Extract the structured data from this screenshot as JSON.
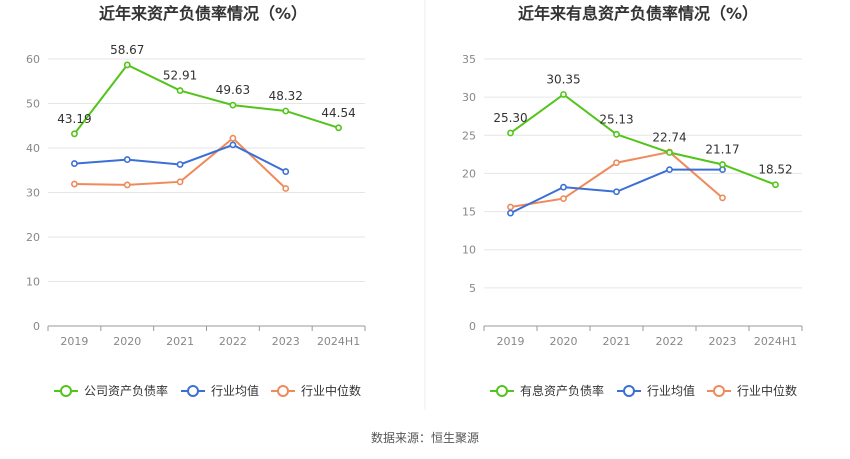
{
  "source_text": "数据来源：恒生聚源",
  "chart_data": [
    {
      "type": "line",
      "title": "近年来资产负债率情况（%）",
      "categories": [
        "2019",
        "2020",
        "2021",
        "2022",
        "2023",
        "2024H1"
      ],
      "ylim": [
        0,
        60
      ],
      "yticks": [
        0,
        10,
        20,
        30,
        40,
        50,
        60
      ],
      "grid": true,
      "legend_position": "bottom",
      "series": [
        {
          "name": "公司资产负债率",
          "color": "#52c41a",
          "labels": true,
          "values": [
            43.19,
            58.67,
            52.91,
            49.63,
            48.32,
            44.54
          ]
        },
        {
          "name": "行业均值",
          "color": "#3b6fd6",
          "labels": false,
          "values": [
            36.5,
            37.4,
            36.3,
            40.7,
            34.7,
            null
          ]
        },
        {
          "name": "行业中位数",
          "color": "#ef8a5a",
          "labels": false,
          "values": [
            31.9,
            31.7,
            32.4,
            42.2,
            30.9,
            null
          ]
        }
      ]
    },
    {
      "type": "line",
      "title": "近年来有息资产负债率情况（%）",
      "categories": [
        "2019",
        "2020",
        "2021",
        "2022",
        "2023",
        "2024H1"
      ],
      "ylim": [
        0,
        35
      ],
      "yticks": [
        0,
        5,
        10,
        15,
        20,
        25,
        30,
        35
      ],
      "grid": true,
      "legend_position": "bottom",
      "series": [
        {
          "name": "有息资产负债率",
          "color": "#52c41a",
          "labels": true,
          "values": [
            25.3,
            30.35,
            25.13,
            22.74,
            21.17,
            18.52
          ]
        },
        {
          "name": "行业均值",
          "color": "#3b6fd6",
          "labels": false,
          "values": [
            14.8,
            18.2,
            17.6,
            20.5,
            20.5,
            null
          ]
        },
        {
          "name": "行业中位数",
          "color": "#ef8a5a",
          "labels": false,
          "values": [
            15.6,
            16.7,
            21.4,
            22.8,
            16.8,
            null
          ]
        }
      ]
    }
  ]
}
